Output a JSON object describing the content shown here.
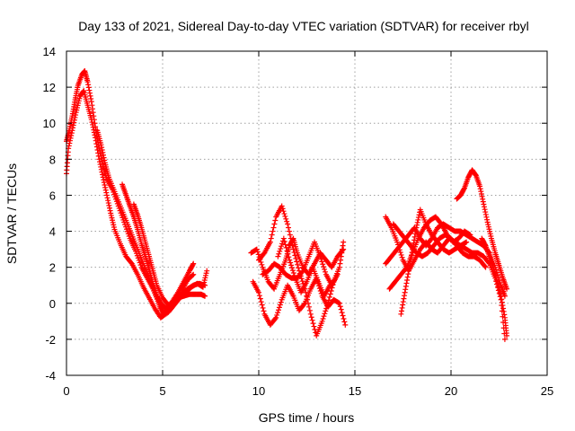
{
  "chart_data": {
    "type": "scatter",
    "title": "Day 133 of 2021, Sidereal Day-to-day VTEC variation (SDTVAR) for receiver rbyl",
    "xlabel": "GPS time / hours",
    "ylabel": "SDTVAR / TECUs",
    "xlim": [
      0,
      25
    ],
    "ylim": [
      -4,
      14
    ],
    "xticks": [
      0,
      5,
      10,
      15,
      20,
      25
    ],
    "yticks": [
      -4,
      -2,
      0,
      2,
      4,
      6,
      8,
      10,
      12,
      14
    ],
    "grid": true,
    "marker": "+",
    "color": "#ff0000",
    "series": [
      {
        "name": "arc-a",
        "points": [
          [
            0.0,
            9.0
          ],
          [
            0.15,
            9.6
          ],
          [
            0.3,
            10.4
          ],
          [
            0.45,
            11.3
          ],
          [
            0.6,
            12.1
          ],
          [
            0.8,
            12.7
          ],
          [
            0.95,
            12.9
          ],
          [
            1.1,
            12.3
          ],
          [
            1.3,
            11.2
          ],
          [
            1.5,
            9.8
          ],
          [
            1.7,
            8.6
          ],
          [
            1.9,
            7.6
          ],
          [
            2.1,
            6.9
          ],
          [
            2.4,
            6.3
          ],
          [
            2.7,
            5.4
          ],
          [
            3.0,
            4.5
          ],
          [
            3.3,
            3.6
          ],
          [
            3.6,
            2.9
          ],
          [
            3.9,
            2.0
          ],
          [
            4.2,
            1.4
          ],
          [
            4.5,
            0.8
          ],
          [
            4.8,
            0.0
          ],
          [
            5.0,
            -0.7
          ],
          [
            5.2,
            -0.4
          ],
          [
            5.5,
            0.1
          ],
          [
            5.8,
            0.6
          ],
          [
            6.1,
            1.2
          ],
          [
            6.4,
            1.8
          ],
          [
            6.6,
            2.2
          ]
        ]
      },
      {
        "name": "arc-b",
        "points": [
          [
            0.0,
            7.2
          ],
          [
            0.1,
            8.6
          ],
          [
            0.3,
            9.6
          ],
          [
            0.5,
            10.6
          ],
          [
            0.7,
            11.5
          ],
          [
            0.9,
            11.8
          ],
          [
            1.1,
            11.0
          ],
          [
            1.3,
            10.2
          ],
          [
            1.5,
            9.2
          ],
          [
            1.7,
            8.0
          ],
          [
            1.9,
            7.0
          ],
          [
            2.1,
            6.0
          ],
          [
            2.3,
            5.0
          ],
          [
            2.5,
            4.1
          ],
          [
            2.8,
            3.3
          ],
          [
            3.1,
            2.6
          ],
          [
            3.4,
            2.2
          ],
          [
            3.7,
            1.6
          ],
          [
            4.0,
            0.9
          ],
          [
            4.3,
            0.3
          ],
          [
            4.6,
            -0.3
          ],
          [
            4.9,
            -0.8
          ],
          [
            5.3,
            -0.5
          ],
          [
            5.6,
            -0.1
          ],
          [
            5.9,
            0.3
          ],
          [
            6.2,
            0.6
          ],
          [
            6.5,
            0.9
          ],
          [
            6.8,
            1.1
          ],
          [
            7.1,
            0.9
          ],
          [
            7.3,
            1.8
          ]
        ]
      },
      {
        "name": "arc-c",
        "points": [
          [
            1.6,
            9.6
          ],
          [
            1.8,
            8.8
          ],
          [
            2.0,
            7.8
          ],
          [
            2.2,
            7.0
          ],
          [
            2.5,
            6.2
          ],
          [
            2.8,
            5.4
          ],
          [
            3.1,
            4.6
          ],
          [
            3.4,
            3.8
          ],
          [
            3.7,
            3.0
          ],
          [
            4.0,
            2.2
          ],
          [
            4.3,
            1.4
          ],
          [
            4.6,
            0.6
          ],
          [
            4.9,
            -0.2
          ],
          [
            5.1,
            -0.6
          ],
          [
            5.4,
            -0.2
          ],
          [
            5.7,
            0.2
          ],
          [
            6.0,
            0.5
          ],
          [
            6.3,
            0.8
          ],
          [
            6.6,
            1.0
          ],
          [
            6.9,
            1.1
          ],
          [
            7.2,
            1.0
          ]
        ]
      },
      {
        "name": "arc-d",
        "points": [
          [
            2.9,
            6.6
          ],
          [
            3.1,
            6.0
          ],
          [
            3.3,
            5.4
          ],
          [
            3.5,
            4.8
          ],
          [
            3.7,
            4.1
          ],
          [
            3.9,
            3.3
          ],
          [
            4.1,
            2.6
          ],
          [
            4.3,
            1.9
          ],
          [
            4.5,
            1.1
          ],
          [
            4.7,
            0.4
          ],
          [
            4.9,
            0.0
          ],
          [
            5.2,
            -0.3
          ],
          [
            5.5,
            0.0
          ],
          [
            5.8,
            0.3
          ],
          [
            6.1,
            0.4
          ],
          [
            6.4,
            0.5
          ],
          [
            6.7,
            0.5
          ],
          [
            7.0,
            0.5
          ],
          [
            7.2,
            0.4
          ]
        ]
      },
      {
        "name": "arc-e",
        "points": [
          [
            3.5,
            5.5
          ],
          [
            3.7,
            4.9
          ],
          [
            3.9,
            4.2
          ],
          [
            4.1,
            3.4
          ],
          [
            4.3,
            2.6
          ],
          [
            4.5,
            1.8
          ],
          [
            4.7,
            1.0
          ],
          [
            5.0,
            0.3
          ],
          [
            5.3,
            -0.1
          ],
          [
            5.6,
            0.1
          ],
          [
            6.0,
            0.7
          ],
          [
            6.3,
            1.3
          ],
          [
            6.6,
            1.6
          ]
        ]
      },
      {
        "name": "mid-a",
        "points": [
          [
            9.6,
            2.8
          ],
          [
            9.9,
            3.0
          ],
          [
            10.2,
            2.0
          ],
          [
            10.5,
            1.2
          ],
          [
            10.8,
            0.8
          ],
          [
            11.1,
            1.6
          ],
          [
            11.4,
            2.4
          ],
          [
            11.6,
            3.2
          ],
          [
            11.8,
            3.6
          ],
          [
            12.0,
            2.8
          ],
          [
            12.3,
            2.0
          ],
          [
            12.6,
            1.6
          ],
          [
            12.9,
            2.2
          ],
          [
            13.2,
            2.8
          ],
          [
            13.5,
            2.4
          ],
          [
            13.8,
            2.0
          ],
          [
            14.1,
            2.6
          ],
          [
            14.4,
            3.0
          ]
        ]
      },
      {
        "name": "mid-b",
        "points": [
          [
            9.7,
            1.2
          ],
          [
            10.0,
            0.6
          ],
          [
            10.3,
            -0.6
          ],
          [
            10.6,
            -1.2
          ],
          [
            10.9,
            -0.8
          ],
          [
            11.2,
            0.2
          ],
          [
            11.5,
            1.0
          ],
          [
            11.8,
            0.4
          ],
          [
            12.1,
            -0.4
          ],
          [
            12.4,
            0.0
          ],
          [
            12.7,
            0.8
          ],
          [
            13.0,
            1.4
          ],
          [
            13.3,
            0.4
          ],
          [
            13.6,
            -0.2
          ],
          [
            13.9,
            0.2
          ],
          [
            14.2,
            0.0
          ],
          [
            14.5,
            -1.2
          ]
        ]
      },
      {
        "name": "mid-c",
        "points": [
          [
            10.0,
            2.4
          ],
          [
            10.3,
            2.8
          ],
          [
            10.6,
            3.4
          ],
          [
            10.9,
            4.8
          ],
          [
            11.2,
            5.4
          ],
          [
            11.5,
            4.4
          ],
          [
            11.8,
            3.0
          ],
          [
            12.1,
            1.8
          ],
          [
            12.4,
            0.8
          ],
          [
            12.7,
            -0.6
          ],
          [
            13.0,
            -1.8
          ],
          [
            13.3,
            -1.0
          ],
          [
            13.6,
            0.0
          ],
          [
            13.9,
            1.2
          ],
          [
            14.2,
            2.0
          ],
          [
            14.4,
            3.4
          ]
        ]
      },
      {
        "name": "mid-d",
        "points": [
          [
            10.2,
            1.6
          ],
          [
            10.5,
            1.8
          ],
          [
            10.8,
            2.2
          ],
          [
            11.1,
            2.0
          ],
          [
            11.4,
            1.6
          ],
          [
            11.7,
            1.4
          ],
          [
            12.0,
            1.4
          ],
          [
            12.3,
            1.8
          ],
          [
            12.6,
            2.6
          ],
          [
            12.9,
            3.4
          ],
          [
            13.2,
            2.6
          ],
          [
            13.5,
            1.6
          ],
          [
            13.8,
            1.0
          ],
          [
            14.1,
            1.6
          ]
        ]
      },
      {
        "name": "mid-e",
        "points": [
          [
            11.0,
            2.6
          ],
          [
            11.3,
            3.6
          ],
          [
            11.6,
            2.4
          ],
          [
            11.9,
            1.4
          ],
          [
            12.2,
            0.6
          ],
          [
            12.5,
            1.2
          ],
          [
            12.8,
            2.0
          ],
          [
            13.1,
            1.2
          ],
          [
            13.4,
            0.4
          ],
          [
            13.7,
            1.0
          ]
        ]
      },
      {
        "name": "late-a",
        "points": [
          [
            16.6,
            2.2
          ],
          [
            16.9,
            2.6
          ],
          [
            17.2,
            3.0
          ],
          [
            17.5,
            3.4
          ],
          [
            17.8,
            3.8
          ],
          [
            18.1,
            4.2
          ],
          [
            18.4,
            3.6
          ],
          [
            18.7,
            3.2
          ],
          [
            19.0,
            3.6
          ],
          [
            19.3,
            4.2
          ],
          [
            19.6,
            4.4
          ],
          [
            19.9,
            4.2
          ],
          [
            20.2,
            4.0
          ],
          [
            20.5,
            4.0
          ],
          [
            20.8,
            3.8
          ],
          [
            21.1,
            3.6
          ],
          [
            21.4,
            3.4
          ],
          [
            21.7,
            3.2
          ],
          [
            22.0,
            2.8
          ],
          [
            22.3,
            2.0
          ],
          [
            22.6,
            1.0
          ],
          [
            22.8,
            0.4
          ]
        ]
      },
      {
        "name": "late-b",
        "points": [
          [
            16.6,
            4.8
          ],
          [
            16.9,
            4.2
          ],
          [
            17.2,
            3.4
          ],
          [
            17.5,
            2.4
          ],
          [
            17.8,
            1.8
          ],
          [
            18.1,
            2.4
          ],
          [
            18.4,
            3.0
          ],
          [
            18.7,
            3.4
          ],
          [
            19.0,
            3.0
          ],
          [
            19.3,
            2.8
          ],
          [
            19.6,
            3.2
          ],
          [
            19.9,
            3.6
          ],
          [
            20.2,
            3.4
          ],
          [
            20.5,
            3.2
          ],
          [
            20.8,
            3.0
          ],
          [
            21.1,
            2.8
          ],
          [
            21.4,
            2.8
          ],
          [
            21.7,
            2.6
          ],
          [
            22.0,
            2.2
          ],
          [
            22.3,
            1.4
          ],
          [
            22.6,
            0.2
          ],
          [
            22.8,
            -2.0
          ]
        ]
      },
      {
        "name": "late-c",
        "points": [
          [
            16.8,
            0.8
          ],
          [
            17.1,
            1.2
          ],
          [
            17.4,
            1.6
          ],
          [
            17.7,
            2.0
          ],
          [
            18.0,
            2.8
          ],
          [
            18.3,
            3.6
          ],
          [
            18.6,
            4.2
          ],
          [
            18.9,
            4.6
          ],
          [
            19.2,
            4.8
          ],
          [
            19.5,
            4.4
          ],
          [
            19.8,
            3.8
          ],
          [
            20.1,
            3.4
          ],
          [
            20.4,
            3.6
          ],
          [
            20.7,
            4.0
          ],
          [
            21.0,
            3.8
          ]
        ]
      },
      {
        "name": "late-d",
        "points": [
          [
            17.4,
            -0.6
          ],
          [
            17.6,
            0.6
          ],
          [
            17.8,
            1.8
          ],
          [
            18.0,
            3.0
          ],
          [
            18.2,
            4.2
          ],
          [
            18.4,
            5.2
          ],
          [
            18.7,
            4.4
          ],
          [
            19.0,
            3.8
          ],
          [
            19.3,
            3.4
          ],
          [
            19.6,
            3.0
          ],
          [
            19.9,
            2.8
          ],
          [
            20.2,
            3.0
          ],
          [
            20.5,
            3.2
          ],
          [
            20.8,
            3.4
          ]
        ]
      },
      {
        "name": "late-e",
        "points": [
          [
            20.3,
            5.8
          ],
          [
            20.5,
            6.0
          ],
          [
            20.7,
            6.4
          ],
          [
            20.9,
            7.0
          ],
          [
            21.1,
            7.4
          ],
          [
            21.3,
            7.1
          ],
          [
            21.5,
            6.5
          ],
          [
            21.7,
            5.5
          ],
          [
            21.9,
            4.5
          ],
          [
            22.1,
            3.6
          ],
          [
            22.3,
            2.8
          ],
          [
            22.5,
            2.1
          ],
          [
            22.7,
            1.4
          ],
          [
            22.9,
            0.8
          ]
        ]
      },
      {
        "name": "late-f",
        "points": [
          [
            21.6,
            3.6
          ],
          [
            21.8,
            3.2
          ],
          [
            22.0,
            2.6
          ],
          [
            22.2,
            2.0
          ],
          [
            22.4,
            1.2
          ],
          [
            22.6,
            0.4
          ],
          [
            22.8,
            -0.8
          ],
          [
            22.9,
            -1.8
          ]
        ]
      },
      {
        "name": "late-g",
        "points": [
          [
            17.0,
            4.4
          ],
          [
            17.3,
            4.0
          ],
          [
            17.6,
            3.6
          ],
          [
            17.9,
            3.2
          ],
          [
            18.2,
            2.8
          ],
          [
            18.5,
            2.6
          ],
          [
            18.8,
            2.8
          ],
          [
            19.1,
            3.2
          ],
          [
            19.4,
            3.6
          ],
          [
            19.7,
            3.8
          ],
          [
            20.0,
            3.6
          ],
          [
            20.3,
            3.2
          ],
          [
            20.6,
            2.8
          ],
          [
            20.9,
            2.6
          ],
          [
            21.2,
            2.6
          ],
          [
            21.5,
            2.4
          ],
          [
            21.8,
            2.0
          ]
        ]
      }
    ]
  }
}
